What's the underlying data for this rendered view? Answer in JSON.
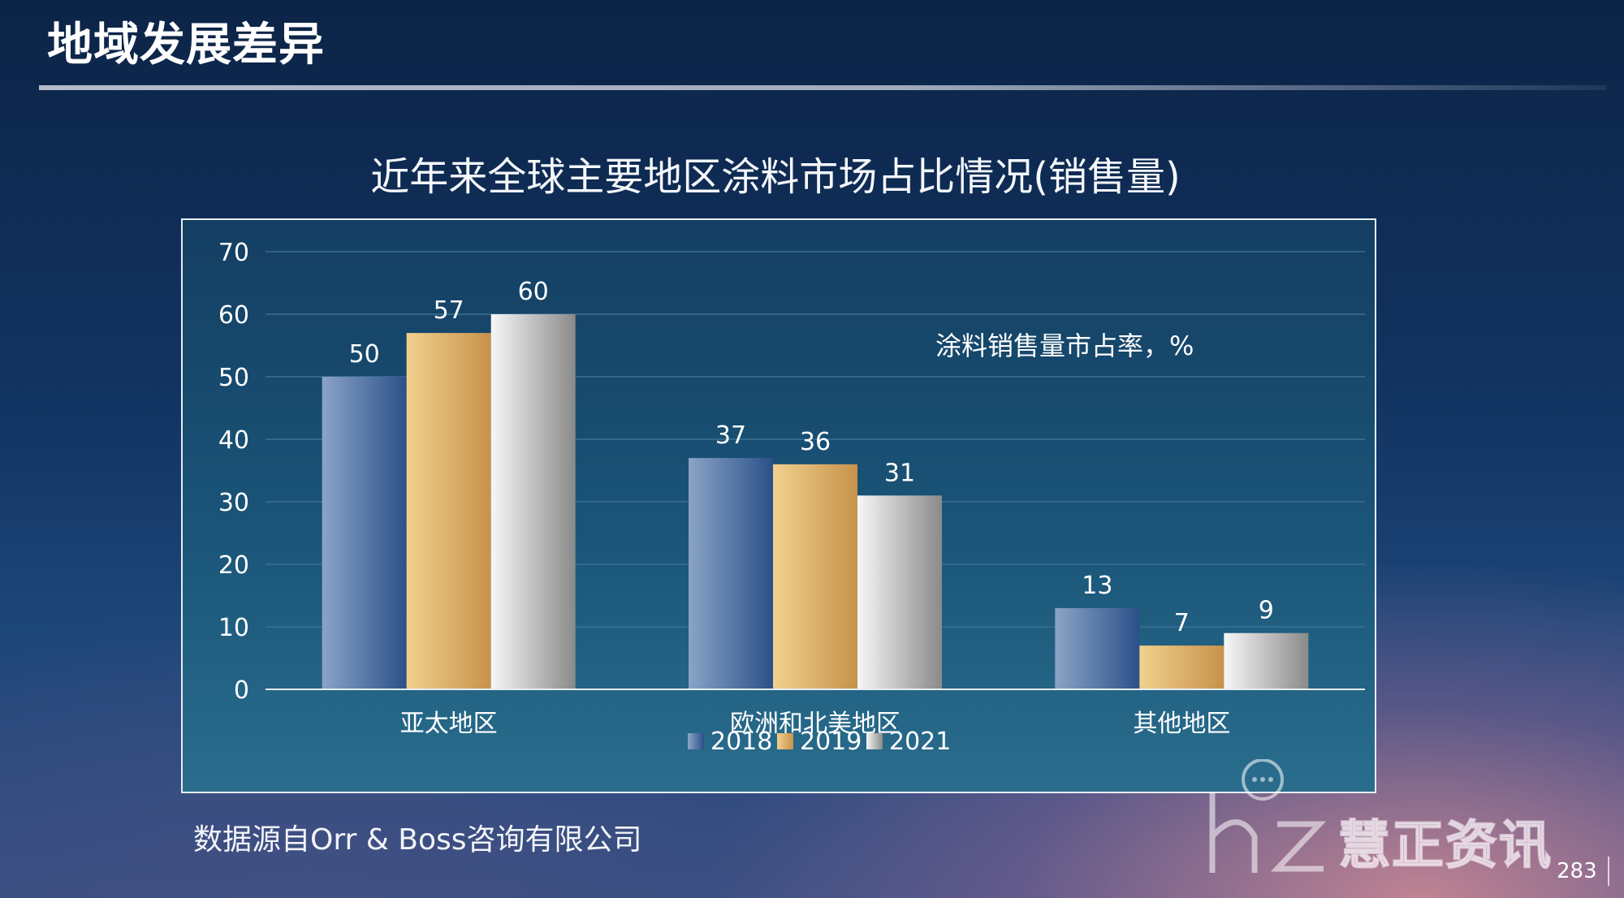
{
  "page": {
    "title": "地域发展差异",
    "source_note": "数据源自Orr & Boss咨询有限公司",
    "page_number": "283",
    "watermark": "慧正资讯"
  },
  "chart_data": {
    "type": "bar",
    "title": "近年来全球主要地区涂料市场占比情况(销售量)",
    "annotation": "涂料销售量市占率，%",
    "categories": [
      "亚太地区",
      "欧洲和北美地区",
      "其他地区"
    ],
    "series": [
      {
        "name": "2018",
        "values": [
          50,
          37,
          13
        ]
      },
      {
        "name": "2019",
        "values": [
          57,
          36,
          7
        ]
      },
      {
        "name": "2021",
        "values": [
          60,
          31,
          9
        ]
      }
    ],
    "ylim": [
      0,
      70
    ],
    "yticks": [
      0,
      10,
      20,
      30,
      40,
      50,
      60,
      70
    ],
    "grid": true,
    "legend_position": "bottom-center",
    "colors": {
      "2018": [
        "#8aa4c6",
        "#2b5089"
      ],
      "2019": [
        "#f2d08e",
        "#c7924a"
      ],
      "2021": [
        "#f7f7f7",
        "#8a8a8a"
      ],
      "gridline": "#3a7194",
      "axis": "#e6edf3",
      "text": "#ffffff"
    }
  }
}
